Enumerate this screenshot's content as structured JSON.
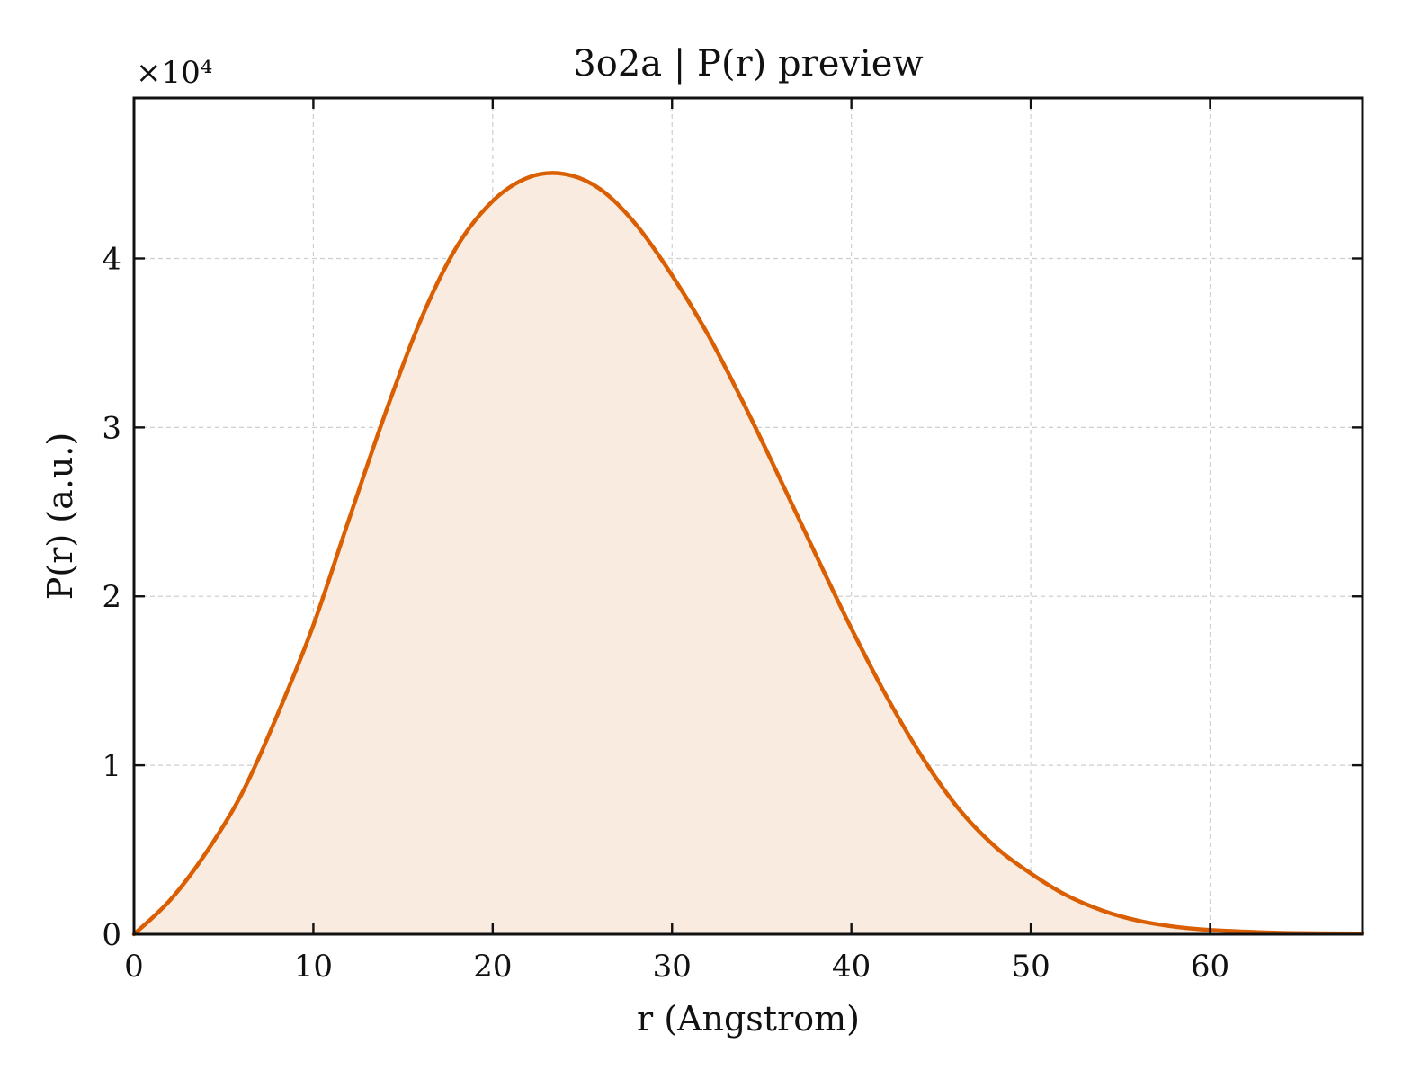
{
  "chart_data": {
    "type": "area",
    "title": "3o2a | P(r) preview",
    "xlabel": "r (Angstrom)",
    "ylabel": "P(r) (a.u.)",
    "y_multiplier_label": "×10⁴",
    "xlim": [
      0,
      68.5
    ],
    "ylim": [
      0,
      49500
    ],
    "xticks": [
      0,
      10,
      20,
      30,
      40,
      50,
      60
    ],
    "yticks": [
      0,
      10000,
      20000,
      30000,
      40000
    ],
    "ytick_labels": [
      "0",
      "1",
      "2",
      "3",
      "4"
    ],
    "grid": true,
    "line_color": "#d95f02",
    "fill_color": "#f9ebe0",
    "series": [
      {
        "x": [
          0,
          2,
          4,
          6,
          8,
          10,
          12,
          14,
          16,
          18,
          20,
          22,
          24,
          26,
          28,
          30,
          32,
          34,
          36,
          38,
          40,
          42,
          44,
          46,
          48,
          50,
          52,
          54,
          56,
          58,
          60,
          62,
          64,
          66,
          68.5
        ],
        "y": [
          0,
          2000,
          4800,
          8300,
          13000,
          18300,
          24600,
          30800,
          36400,
          40700,
          43400,
          44800,
          45000,
          44100,
          42000,
          39000,
          35500,
          31400,
          27000,
          22500,
          18100,
          14000,
          10400,
          7400,
          5200,
          3600,
          2300,
          1400,
          800,
          450,
          250,
          150,
          80,
          50,
          40
        ]
      }
    ]
  }
}
